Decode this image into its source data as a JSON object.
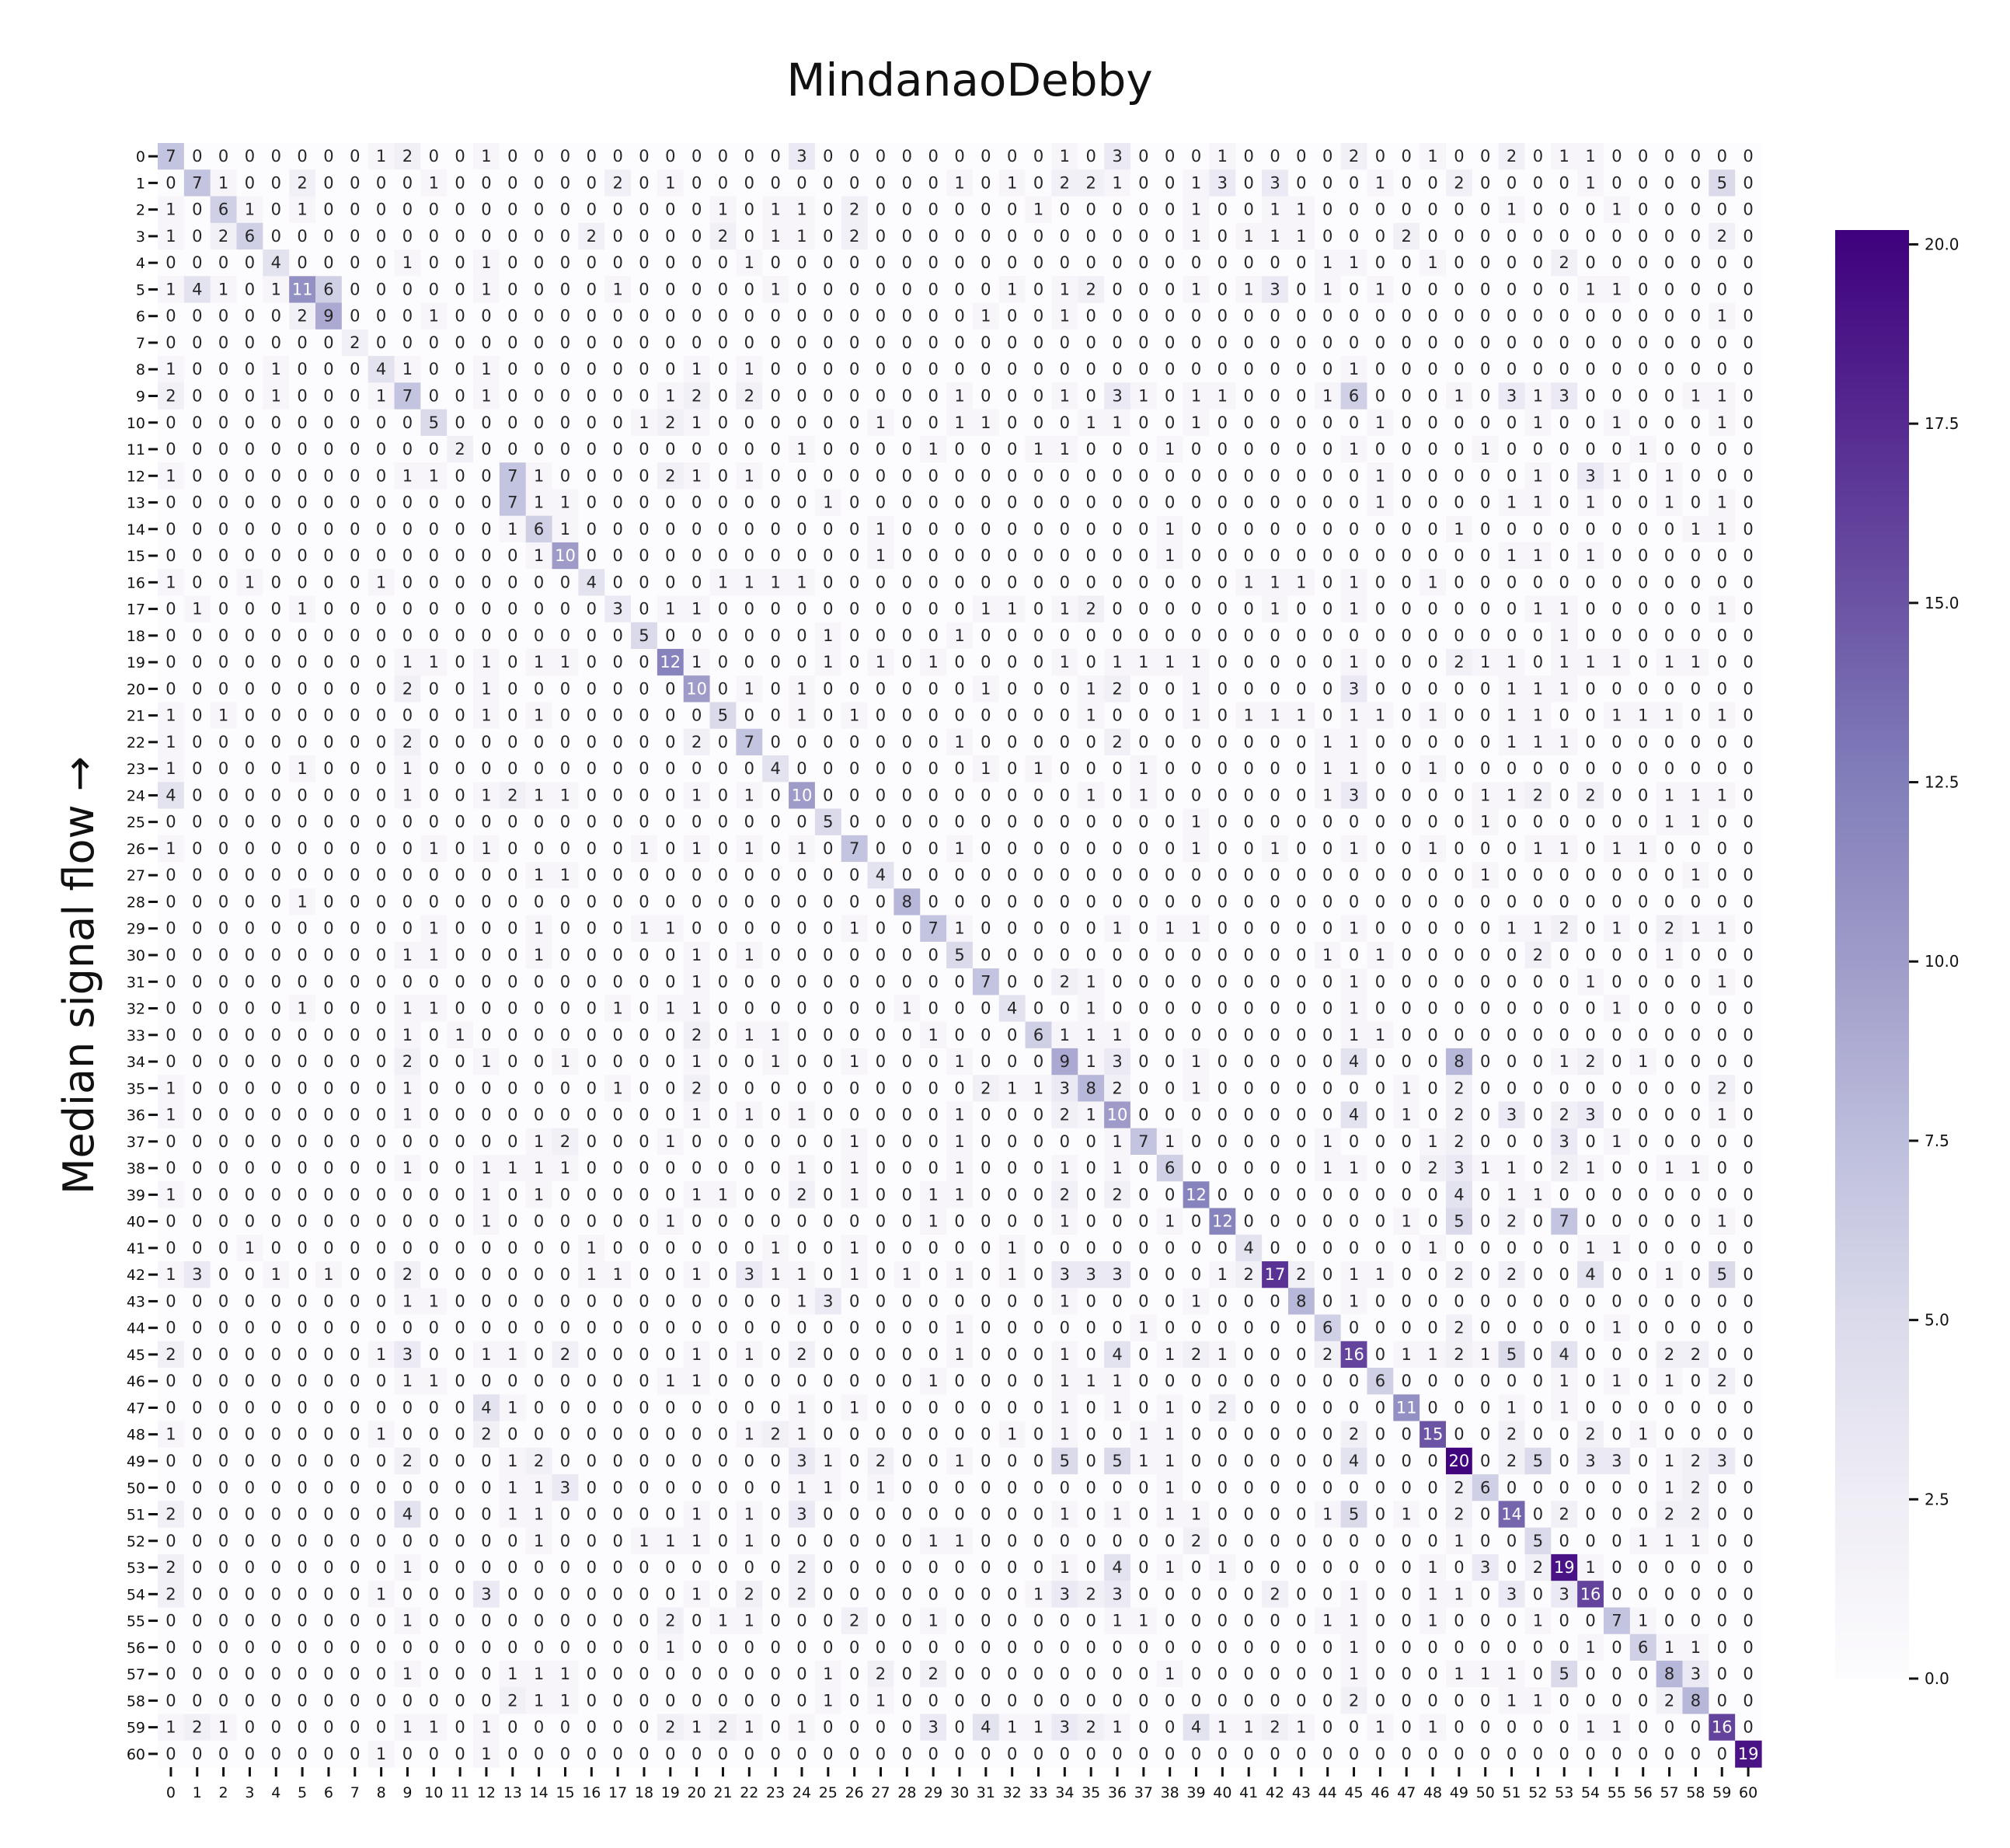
{
  "chart_data": {
    "type": "heatmap",
    "title": "MindanaoDebby",
    "ylabel": "Median signal flow →",
    "xlabel": "",
    "x_labels": [
      "0",
      "1",
      "2",
      "3",
      "4",
      "5",
      "6",
      "7",
      "8",
      "9",
      "10",
      "11",
      "12",
      "13",
      "14",
      "15",
      "16",
      "17",
      "18",
      "19",
      "20",
      "21",
      "22",
      "23",
      "24",
      "25",
      "26",
      "27",
      "28",
      "29",
      "30",
      "31",
      "32",
      "33",
      "34",
      "35",
      "36",
      "37",
      "38",
      "39",
      "40",
      "41",
      "42",
      "43",
      "44",
      "45",
      "46",
      "47",
      "48",
      "49",
      "50",
      "51",
      "52",
      "53",
      "54",
      "55",
      "56",
      "57",
      "58",
      "59",
      "60"
    ],
    "y_labels": [
      "0",
      "1",
      "2",
      "3",
      "4",
      "5",
      "6",
      "7",
      "8",
      "9",
      "10",
      "11",
      "12",
      "13",
      "14",
      "15",
      "16",
      "17",
      "18",
      "19",
      "20",
      "21",
      "22",
      "23",
      "24",
      "25",
      "26",
      "27",
      "28",
      "29",
      "30",
      "31",
      "32",
      "33",
      "34",
      "35",
      "36",
      "37",
      "38",
      "39",
      "40",
      "41",
      "42",
      "43",
      "44",
      "45",
      "46",
      "47",
      "48",
      "49",
      "50",
      "51",
      "52",
      "53",
      "54",
      "55",
      "56",
      "57",
      "58",
      "59",
      "60"
    ],
    "colormap": "Purples",
    "vmin": 0,
    "vmax": 20.2,
    "colorbar_ticks": [
      "0.0",
      "2.5",
      "5.0",
      "7.5",
      "10.0",
      "12.5",
      "15.0",
      "17.5",
      "20.0"
    ],
    "colorbar_tick_values": [
      0,
      2.5,
      5,
      7.5,
      10,
      12.5,
      15,
      17.5,
      20
    ],
    "matrix": [
      "7 0 0 0 0 0 0 0 1 2 0 0 1 0 0 0 0 0 0 0 0 0 0 0 3 0 0 0 0 0 0 0 0 0 1 0 3 0 0 0 1 0 0 0 0 2 0 0 1 0 0 2 0 1 1 0 0 0 0 0 0",
      "0 7 1 0 0 2 0 0 0 0 1 0 0 0 0 0 0 2 0 1 0 0 0 0 0 0 0 0 0 0 1 0 1 0 2 2 1 0 0 1 3 0 3 0 0 0 1 0 0 2 0 0 0 0 1 0 0 0 0 5 0",
      "1 0 6 1 0 1 0 0 0 0 0 0 0 0 0 0 0 0 0 0 0 1 0 1 1 0 2 0 0 0 0 0 0 1 0 0 0 0 0 1 0 0 1 1 0 0 0 0 0 0 0 1 0 0 0 1 0 0 0 0 0",
      "1 0 2 6 0 0 0 0 0 0 0 0 0 0 0 0 2 0 0 0 0 2 0 1 1 0 2 0 0 0 0 0 0 0 0 0 0 0 0 1 0 1 1 1 0 0 0 2 0 0 0 0 0 0 0 0 0 0 0 2 0",
      "0 0 0 0 4 0 0 0 0 1 0 0 1 0 0 0 0 0 0 0 0 0 1 0 0 0 0 0 0 0 0 0 0 0 0 0 0 0 0 0 0 0 0 0 1 1 0 0 1 0 0 0 0 2 0 0 0 0 0 0 0",
      "1 4 1 0 1 11 6 0 0 0 0 0 1 0 0 0 0 1 0 0 0 0 0 1 0 0 0 0 0 0 0 0 1 0 1 2 0 0 0 1 0 1 3 0 1 0 1 0 0 0 0 0 0 0 1 1 0 0 0 0 0",
      "0 0 0 0 0 2 9 0 0 0 1 0 0 0 0 0 0 0 0 0 0 0 0 0 0 0 0 0 0 0 0 1 0 0 1 0 0 0 0 0 0 0 0 0 0 0 0 0 0 0 0 0 0 0 0 0 0 0 0 1 0",
      "0 0 0 0 0 0 0 2 0 0 0 0 0 0 0 0 0 0 0 0 0 0 0 0 0 0 0 0 0 0 0 0 0 0 0 0 0 0 0 0 0 0 0 0 0 0 0 0 0 0 0 0 0 0 0 0 0 0 0 0 0",
      "1 0 0 0 1 0 0 0 4 1 0 0 1 0 0 0 0 0 0 0 1 0 1 0 0 0 0 0 0 0 0 0 0 0 0 0 0 0 0 0 0 0 0 0 0 1 0 0 0 0 0 0 0 0 0 0 0 0 0 0 0",
      "2 0 0 0 1 0 0 0 1 7 0 0 1 0 0 0 0 0 0 1 2 0 2 0 0 0 0 0 0 0 1 0 0 0 1 0 3 1 0 1 1 0 0 0 1 6 0 0 0 1 0 3 1 3 0 0 0 0 1 1 0",
      "0 0 0 0 0 0 0 0 0 0 5 0 0 0 0 0 0 0 1 2 1 0 0 0 0 0 0 1 0 0 1 1 0 0 0 1 1 0 0 1 0 0 0 0 0 0 1 0 0 0 0 0 1 0 0 1 0 0 0 1 0",
      "0 0 0 0 0 0 0 0 0 0 0 2 0 0 0 0 0 0 0 0 0 0 0 0 1 0 0 0 0 1 0 0 0 1 1 0 0 0 1 0 0 0 0 0 0 1 0 0 0 0 1 0 0 0 0 0 1 0 0 0 0",
      "1 0 0 0 0 0 0 0 0 1 1 0 0 7 1 0 0 0 0 2 1 0 1 0 0 0 0 0 0 0 0 0 0 0 0 0 0 0 0 0 0 0 0 0 0 0 1 0 0 0 0 0 1 0 3 1 0 1 0 0 0",
      "0 0 0 0 0 0 0 0 0 0 0 0 0 7 1 1 0 0 0 0 0 0 0 0 0 1 0 0 0 0 0 0 0 0 0 0 0 0 0 0 0 0 0 0 0 0 1 0 0 0 0 1 1 0 1 0 0 1 0 1 0",
      "0 0 0 0 0 0 0 0 0 0 0 0 0 1 6 1 0 0 0 0 0 0 0 0 0 0 0 1 0 0 0 0 0 0 0 0 0 0 1 0 0 0 0 0 0 0 0 0 0 1 0 0 0 0 0 0 0 0 1 1 0",
      "0 0 0 0 0 0 0 0 0 0 0 0 0 0 1 10 0 0 0 0 0 0 0 0 0 0 0 1 0 0 0 0 0 0 0 0 0 0 1 0 0 0 0 0 0 0 0 0 0 0 0 1 1 0 1 0 0 0 0 0 0",
      "1 0 0 1 0 0 0 0 1 0 0 0 0 0 0 0 4 0 0 0 0 1 1 1 1 0 0 0 0 0 0 0 0 0 0 0 0 0 0 0 0 1 1 1 0 1 0 0 1 0 0 0 0 0 0 0 0 0 0 0 0",
      "0 1 0 0 0 1 0 0 0 0 0 0 0 0 0 0 0 3 0 1 1 0 0 0 0 0 0 0 0 0 0 1 1 0 1 2 0 0 0 0 0 0 1 0 0 1 0 0 0 0 0 0 1 1 0 0 0 0 0 1 0",
      "0 0 0 0 0 0 0 0 0 0 0 0 0 0 0 0 0 0 5 0 0 0 0 0 0 1 0 0 0 0 1 0 0 0 0 0 0 0 0 0 0 0 0 0 0 0 0 0 0 0 0 0 0 1 0 0 0 0 0 0 0",
      "0 0 0 0 0 0 0 0 0 1 1 0 1 0 1 1 0 0 0 12 1 0 0 0 0 1 0 1 0 1 0 0 0 0 1 0 1 1 1 1 0 0 0 0 0 1 0 0 0 2 1 1 0 1 1 1 0 1 1 0 0",
      "0 0 0 0 0 0 0 0 0 2 0 0 1 0 0 0 0 0 0 0 10 0 1 0 1 0 0 0 0 0 0 1 0 0 0 1 2 0 0 1 0 0 0 0 0 3 0 0 0 0 0 1 1 1 0 0 0 0 0 0 0",
      "1 0 1 0 0 0 0 0 0 0 0 0 1 0 1 0 0 0 0 0 0 5 0 0 1 0 1 0 0 0 0 0 0 0 0 1 0 0 0 1 0 1 1 1 0 1 1 0 1 0 0 1 1 0 0 1 1 1 0 1 0",
      "1 0 0 0 0 0 0 0 0 2 0 0 0 0 0 0 0 0 0 0 2 0 7 0 0 0 0 0 0 0 1 0 0 0 0 0 2 0 0 0 0 0 0 0 1 1 0 0 0 0 0 1 1 1 0 0 0 0 0 0 0",
      "1 0 0 0 0 1 0 0 0 1 0 0 0 0 0 0 0 0 0 0 0 0 0 4 0 0 0 0 0 0 0 1 0 1 0 0 0 1 0 0 0 0 0 0 1 1 0 0 1 0 0 0 0 0 0 0 0 0 0 0 0",
      "4 0 0 0 0 0 0 0 0 1 0 0 1 2 1 1 0 0 0 0 1 0 1 0 10 0 0 0 0 0 0 0 0 0 0 1 0 1 0 0 0 0 0 0 1 3 0 0 0 0 1 1 2 0 2 0 0 1 1 1 0",
      "0 0 0 0 0 0 0 0 0 0 0 0 0 0 0 0 0 0 0 0 0 0 0 0 0 5 0 0 0 0 0 0 0 0 0 0 0 0 0 1 0 0 0 0 0 0 0 0 0 0 1 0 0 0 0 0 0 1 1 0 0",
      "1 0 0 0 0 0 0 0 0 0 1 0 1 0 0 0 0 0 1 0 1 0 1 0 1 0 7 0 0 0 1 0 0 0 0 0 0 0 0 1 0 0 1 0 0 1 0 0 1 0 0 0 1 1 0 1 1 0 0 0 0",
      "0 0 0 0 0 0 0 0 0 0 0 0 0 0 1 1 0 0 0 0 0 0 0 0 0 0 0 4 0 0 0 0 0 0 0 0 0 0 0 0 0 0 0 0 0 0 0 0 0 0 1 0 0 0 0 0 0 0 1 0 0",
      "0 0 0 0 0 1 0 0 0 0 0 0 0 0 0 0 0 0 0 0 0 0 0 0 0 0 0 0 8 0 0 0 0 0 0 0 0 0 0 0 0 0 0 0 0 0 0 0 0 0 0 0 0 0 0 0 0 0 0 0 0",
      "0 0 0 0 0 0 0 0 0 0 1 0 0 0 1 0 0 0 1 1 0 0 0 0 0 0 1 0 0 7 1 0 0 0 0 0 1 0 1 1 0 0 0 0 0 1 0 0 0 0 0 1 1 2 0 1 0 2 1 1 0",
      "0 0 0 0 0 0 0 0 0 1 1 0 0 0 1 0 0 0 0 0 1 0 1 0 0 0 0 0 0 0 5 0 0 0 0 0 0 0 0 0 0 0 0 0 1 0 1 0 0 0 0 0 2 0 0 0 0 1 0 0 0",
      "0 0 0 0 0 0 0 0 0 0 0 0 0 0 0 0 0 0 0 0 1 0 0 0 0 0 0 0 0 0 0 7 0 0 2 1 0 0 0 0 0 0 0 0 0 1 0 0 0 0 0 0 0 0 1 0 0 0 0 1 0",
      "0 0 0 0 0 1 0 0 0 1 1 0 0 0 0 0 0 1 0 1 1 0 0 0 0 0 0 0 1 0 0 0 4 0 0 1 0 0 0 0 0 0 0 0 0 1 0 0 0 0 0 0 0 0 0 1 0 0 0 0 0",
      "0 0 0 0 0 0 0 0 0 1 0 1 0 0 0 0 0 0 0 0 2 0 1 1 0 0 0 0 0 1 0 0 0 6 1 1 1 0 0 0 0 0 0 0 0 1 1 0 0 0 0 0 0 0 0 0 0 0 0 0 0",
      "0 0 0 0 0 0 0 0 0 2 0 0 1 0 0 1 0 0 0 0 1 0 0 1 0 0 1 0 0 0 1 0 0 0 9 1 3 0 0 1 0 0 0 0 0 4 0 0 0 8 0 0 0 1 2 0 1 0 0 0 0",
      "1 0 0 0 0 0 0 0 0 1 0 0 0 0 0 0 0 1 0 0 2 0 0 0 0 0 0 0 0 0 0 2 1 1 3 8 2 0 0 1 0 0 0 0 0 0 0 1 0 2 0 0 0 0 0 0 0 0 0 2 0",
      "1 0 0 0 0 0 0 0 0 1 0 0 0 0 0 0 0 0 0 0 1 0 1 0 1 0 0 0 0 0 1 0 0 0 2 1 10 0 0 0 0 0 0 0 0 4 0 1 0 2 0 3 0 2 3 0 0 0 0 1 0",
      "0 0 0 0 0 0 0 0 0 0 0 0 0 0 1 2 0 0 0 1 0 0 0 0 0 0 1 0 0 0 1 0 0 0 0 0 1 7 1 0 0 0 0 0 1 0 0 0 1 2 0 0 0 3 0 1 0 0 0 0 0",
      "0 0 0 0 0 0 0 0 0 1 0 0 1 1 1 1 0 0 0 0 0 0 0 0 1 0 1 0 0 0 1 0 0 0 1 0 1 0 6 0 0 0 0 0 1 1 0 0 2 3 1 1 0 2 1 0 0 1 1 0 0",
      "1 0 0 0 0 0 0 0 0 0 0 0 1 0 1 0 0 0 0 0 1 1 0 0 2 0 1 0 0 1 1 0 0 0 2 0 2 0 0 12 0 0 0 0 0 0 0 0 0 4 0 1 1 0 0 0 0 0 0 0 0",
      "0 0 0 0 0 0 0 0 0 0 0 0 1 0 0 0 0 0 0 1 0 0 0 0 0 0 0 0 0 1 0 0 0 0 1 0 0 0 1 0 12 0 0 0 0 0 0 1 0 5 0 2 0 7 0 0 0 0 0 1 0",
      "0 0 0 1 0 0 0 0 0 0 0 0 0 0 0 0 1 0 0 0 0 0 0 1 0 0 1 0 0 0 0 0 1 0 0 0 0 0 0 0 0 4 0 0 0 0 0 0 1 0 0 0 0 0 1 1 0 0 0 0 0",
      "1 3 0 0 1 0 1 0 0 2 0 0 0 0 0 0 1 1 0 0 1 0 3 1 1 0 1 0 1 0 1 0 1 0 3 3 3 0 0 0 1 2 17 2 0 1 1 0 0 2 0 2 0 0 4 0 0 1 0 5 0",
      "0 0 0 0 0 0 0 0 0 1 1 0 0 0 0 0 0 0 0 0 0 0 0 0 1 3 0 0 0 0 0 0 0 0 1 0 0 0 0 1 0 0 0 8 0 1 0 0 0 0 0 0 0 0 0 0 0 0 0 0 0",
      "0 0 0 0 0 0 0 0 0 0 0 0 0 0 0 0 0 0 0 0 0 0 0 0 0 0 0 0 0 0 1 0 0 0 0 0 0 1 0 0 0 0 0 0 6 0 0 0 0 2 0 0 0 0 0 1 0 0 0 0 0",
      "2 0 0 0 0 0 0 0 1 3 0 0 1 1 0 2 0 0 0 0 1 0 1 0 2 0 0 0 0 0 1 0 0 0 1 0 4 0 1 2 1 0 0 0 2 16 0 1 1 2 1 5 0 4 0 0 0 2 2 0 0",
      "0 0 0 0 0 0 0 0 0 1 1 0 0 0 0 0 0 0 0 1 1 0 0 0 0 0 0 0 0 1 0 0 0 0 1 1 1 0 0 0 0 0 0 0 0 0 6 0 0 0 0 0 0 1 0 1 0 1 0 2 0",
      "0 0 0 0 0 0 0 0 0 0 0 0 4 1 0 0 0 0 0 0 0 0 0 0 1 0 1 0 0 0 0 0 0 0 1 0 1 0 1 0 2 0 0 0 0 0 0 11 0 0 0 1 0 1 0 0 0 0 0 0 0",
      "1 0 0 0 0 0 0 0 1 0 0 0 2 0 0 0 0 0 0 0 0 0 1 2 1 0 0 0 0 0 0 0 1 0 1 0 0 1 1 0 0 0 0 0 0 2 0 0 15 0 0 2 0 0 2 0 1 0 0 0 0",
      "0 0 0 0 0 0 0 0 0 2 0 0 0 1 2 0 0 0 0 0 0 0 0 0 3 1 0 2 0 0 1 0 0 0 5 0 5 1 1 0 0 0 0 0 0 4 0 0 0 20 0 2 5 0 3 3 0 1 2 3 0",
      "0 0 0 0 0 0 0 0 0 0 0 0 0 1 1 3 0 0 0 0 0 0 0 0 1 1 0 1 0 0 0 0 0 0 0 0 0 0 1 0 0 0 0 0 0 0 0 0 0 2 6 0 0 0 0 0 0 1 2 0 0",
      "2 0 0 0 0 0 0 0 0 4 0 0 0 1 1 0 0 0 0 0 1 0 1 0 3 0 0 0 0 0 0 0 0 0 1 0 1 0 1 1 0 0 0 0 1 5 0 1 0 2 0 14 0 2 0 0 0 2 2 0 0",
      "0 0 0 0 0 0 0 0 0 0 0 0 0 0 1 0 0 0 1 1 1 0 1 0 0 0 0 0 0 1 1 0 0 0 0 0 0 0 0 2 0 0 0 0 0 0 0 0 0 1 0 0 5 0 0 0 1 1 1 0 0",
      "2 0 0 0 0 0 0 0 0 1 0 0 0 0 0 0 0 0 0 0 0 0 0 0 2 0 0 0 0 0 0 0 0 0 1 0 4 0 1 0 1 0 0 0 0 0 0 0 1 0 3 0 2 19 1 0 0 0 0 0 0",
      "2 0 0 0 0 0 0 0 1 0 0 0 3 0 0 0 0 0 0 0 1 0 2 0 2 0 0 0 0 0 0 0 0 1 3 2 3 0 0 0 0 0 2 0 0 1 0 0 1 1 0 3 0 3 16 0 0 0 0 0 0",
      "0 0 0 0 0 0 0 0 0 1 0 0 0 0 0 0 0 0 0 2 0 1 1 0 0 0 2 0 0 1 0 0 0 0 0 0 1 1 0 0 0 0 0 0 1 1 0 0 1 0 0 0 1 0 0 7 1 0 0 0 0",
      "0 0 0 0 0 0 0 0 0 0 0 0 0 0 0 0 0 0 0 1 0 0 0 0 0 0 0 0 0 0 0 0 0 0 0 0 0 0 0 0 0 0 0 0 0 1 0 0 0 0 0 0 0 0 1 0 6 1 1 0 0",
      "0 0 0 0 0 0 0 0 0 1 0 0 0 1 1 1 0 0 0 0 0 0 0 0 0 1 0 2 0 2 0 0 0 0 0 0 0 0 1 0 0 0 0 0 0 1 0 0 0 1 1 1 0 5 0 0 0 8 3 0 0",
      "0 0 0 0 0 0 0 0 0 0 0 0 0 2 1 1 0 0 0 0 0 0 0 0 0 1 0 1 0 0 0 0 0 0 0 0 0 0 0 0 0 0 0 0 0 2 0 0 0 0 0 1 1 0 0 0 0 2 8 0 0",
      "1 2 1 0 0 0 0 0 0 1 1 0 1 0 0 0 0 0 0 2 1 2 1 0 1 0 0 0 0 3 0 4 1 1 3 2 1 0 0 4 1 1 2 1 0 0 1 0 1 0 0 0 0 0 1 1 0 0 0 16 0",
      "0 0 0 0 0 0 0 0 1 0 0 0 1 0 0 0 0 0 0 0 0 0 0 0 0 0 0 0 0 0 0 0 0 0 0 0 0 0 0 0 0 0 0 0 0 0 0 0 0 0 0 0 0 0 0 0 0 0 0 0 19"
    ]
  }
}
